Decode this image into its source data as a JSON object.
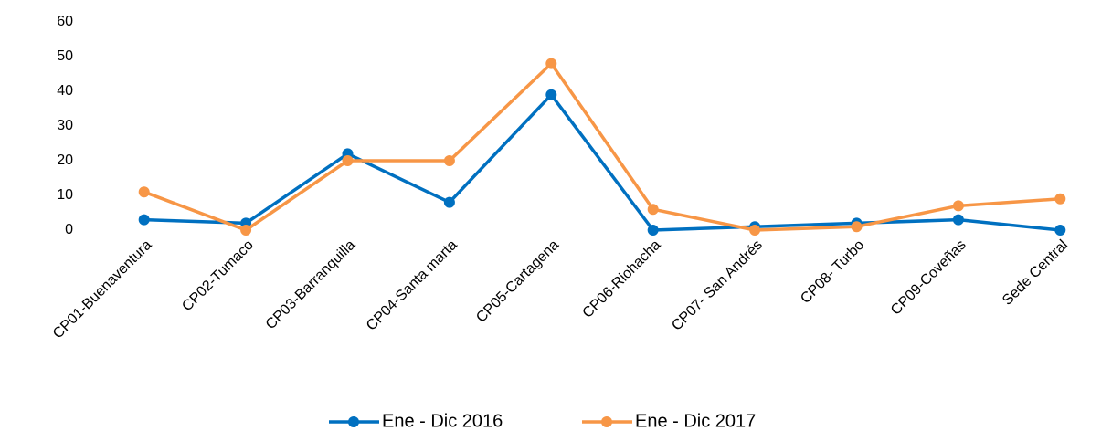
{
  "chart_data": {
    "type": "line",
    "categories": [
      "CP01-Buenaventura",
      "CP02-Tumaco",
      "CP03-Barranquilla",
      "CP04-Santa marta",
      "CP05-Cartagena",
      "CP06-Riohacha",
      "CP07- San Andrés",
      "CP08- Turbo",
      "CP09-Coveñas",
      "Sede Central"
    ],
    "series": [
      {
        "name": "Ene - Dic 2016",
        "color": "#0070c0",
        "values": [
          3,
          2,
          22,
          8,
          39,
          0,
          1,
          2,
          3,
          0
        ]
      },
      {
        "name": "Ene - Dic 2017",
        "color": "#f79646",
        "values": [
          11,
          0,
          20,
          20,
          48,
          6,
          0,
          1,
          7,
          9
        ]
      }
    ],
    "ylim": [
      0,
      60
    ],
    "yticks": [
      0,
      10,
      20,
      30,
      40,
      50,
      60
    ],
    "grid": false,
    "legend": "bottom"
  }
}
